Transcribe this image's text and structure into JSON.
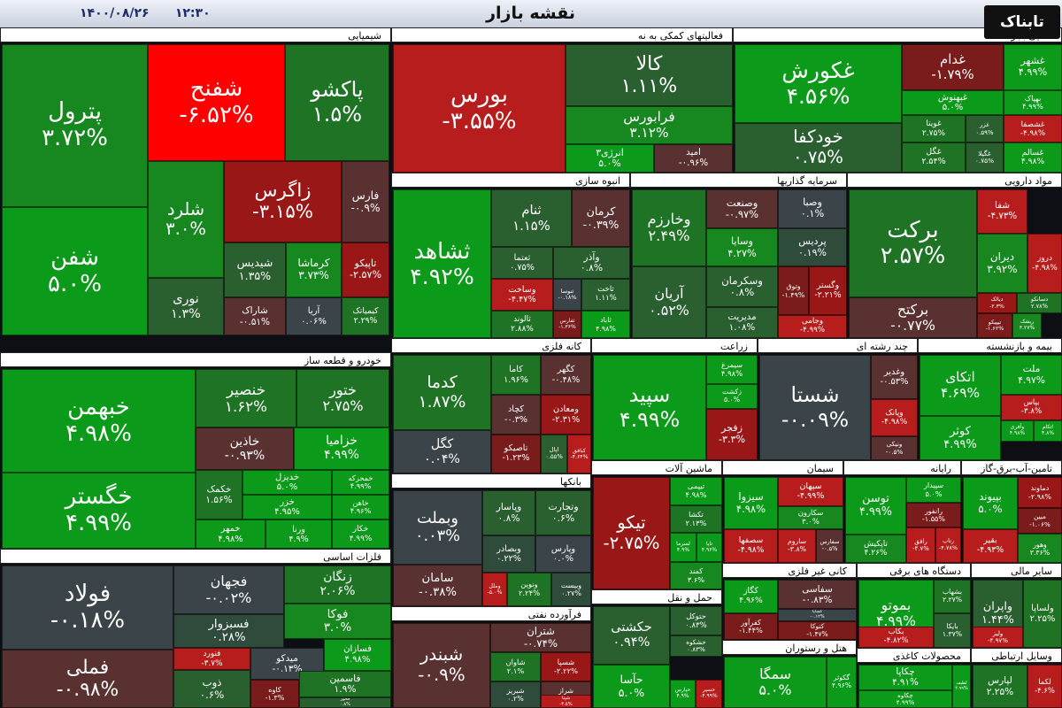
{
  "header": {
    "title": "نقشه بازار",
    "time": "۱۲:۳۰",
    "date": "۱۴۰۰/۰۸/۲۶",
    "logo": "تابناک"
  },
  "colors": {
    "g5": "#0c9a1a",
    "g4": "#17881f",
    "g3": "#1f7325",
    "g2": "#2a5f30",
    "g1": "#2f4b3b",
    "n": "#3b4448",
    "r1": "#5a3131",
    "r2": "#7a1c1c",
    "r3": "#9a1717",
    "r4": "#b81d1d",
    "r5": "#ff0000"
  },
  "chart_data": {
    "type": "treemap",
    "title": "نقشه بازار",
    "sectors": [
      {
        "name": "شیمیایی",
        "items": [
          {
            "n": "پترول",
            "p": "۳.۷۲%",
            "v": 3.72
          },
          {
            "n": "شفن",
            "p": "۵.۰%",
            "v": 5.0
          },
          {
            "n": "شفنح",
            "p": "-۶.۵۲%",
            "v": -6.52
          },
          {
            "n": "پاکشو",
            "p": "۱.۵%",
            "v": 1.5
          },
          {
            "n": "شلرد",
            "p": "۳.۰%",
            "v": 3.0
          },
          {
            "n": "زاگرس",
            "p": "-۳.۱۵%",
            "v": -3.15
          },
          {
            "n": "فارس",
            "p": "-۰.۹%",
            "v": -0.9
          },
          {
            "n": "شیدیس",
            "p": "۱.۳۵%",
            "v": 1.35
          },
          {
            "n": "کرماشا",
            "p": "۳.۷۳%",
            "v": 3.73
          },
          {
            "n": "تاپیکو",
            "p": "-۲.۵۷%",
            "v": -2.57
          },
          {
            "n": "نوری",
            "p": "۱.۳%",
            "v": 1.3
          },
          {
            "n": "شاراک",
            "p": "-۰.۵۱%",
            "v": -0.51
          },
          {
            "n": "آریا",
            "p": "۰.۰۶%",
            "v": 0.06
          },
          {
            "n": "کیمیاتک",
            "p": "۲.۲۹%",
            "v": 2.29
          }
        ]
      },
      {
        "name": "فعالیتهای کمکی به نه",
        "items": [
          {
            "n": "بورس",
            "p": "-۳.۵۵%",
            "v": -3.55
          },
          {
            "n": "کالا",
            "p": "۱.۱۱%",
            "v": 1.11
          },
          {
            "n": "فرابورس",
            "p": "۳.۱۲%",
            "v": 3.12
          },
          {
            "n": "انرژی۳",
            "p": "۵.۰%",
            "v": 5.0
          },
          {
            "n": "امید",
            "p": "-۰.۹۶%",
            "v": -0.96
          }
        ]
      },
      {
        "name": "غذایی بجز قند",
        "items": [
          {
            "n": "غکورش",
            "p": "۴.۵۶%",
            "v": 4.56
          },
          {
            "n": "خودکفا",
            "p": "۰.۷۵%",
            "v": 0.75
          },
          {
            "n": "غدام",
            "p": "-۱.۷۹%",
            "v": -1.79
          },
          {
            "n": "غشهر",
            "p": "۴.۹۹%",
            "v": 4.99
          },
          {
            "n": "غبهنوش",
            "p": "۵.۰%",
            "v": 5.0
          },
          {
            "n": "بهپاک",
            "p": "۴.۹۹%",
            "v": 4.99
          },
          {
            "n": "غویتا",
            "p": "۲.۷۵%",
            "v": 2.75
          },
          {
            "n": "غزر",
            "p": "۰.۵۹%",
            "v": 0.59
          },
          {
            "n": "غشصفا",
            "p": "-۴.۹۸%",
            "v": -4.98
          },
          {
            "n": "غگل",
            "p": "۲.۵۴%",
            "v": 2.54
          },
          {
            "n": "غگیلا",
            "p": "۰.۷۵%",
            "v": 0.75
          },
          {
            "n": "غسالم",
            "p": "۴.۹۸%",
            "v": 4.98
          }
        ]
      },
      {
        "name": "انبوه سازی",
        "items": [
          {
            "n": "ثشاهد",
            "p": "۴.۹۲%",
            "v": 4.92
          },
          {
            "n": "ثنام",
            "p": "۱.۱۵%",
            "v": 1.15
          },
          {
            "n": "کرمان",
            "p": "-۰.۳۹%",
            "v": -0.39
          },
          {
            "n": "ثعتما",
            "p": "۰.۷۵%",
            "v": 0.75
          },
          {
            "n": "وآذر",
            "p": "۰.۸%",
            "v": 0.8
          },
          {
            "n": "وساخت",
            "p": "-۴.۴۷%",
            "v": -4.47
          },
          {
            "n": "ثنوسا",
            "p": "-۰.۱۸%",
            "v": -0.18
          },
          {
            "n": "ثاخت",
            "p": "۱.۱۱%",
            "v": 1.11
          },
          {
            "n": "ثالوند",
            "p": "۲.۸۸%",
            "v": 2.88
          },
          {
            "n": "ثفارس",
            "p": "-۱.۳۶%",
            "v": -1.36
          },
          {
            "n": "ثاباد",
            "p": "۴.۹۸%",
            "v": 4.98
          }
        ]
      },
      {
        "name": "سرمایه گذاریها",
        "items": [
          {
            "n": "وخارزم",
            "p": "۲.۴۹%",
            "v": 2.49
          },
          {
            "n": "وصنعت",
            "p": "-۰.۹۷%",
            "v": -0.97
          },
          {
            "n": "وصبا",
            "p": "۰.۱%",
            "v": 0.1
          },
          {
            "n": "وسایا",
            "p": "۴.۲۷%",
            "v": 4.27
          },
          {
            "n": "پردیس",
            "p": "۰.۱۹%",
            "v": 0.19
          },
          {
            "n": "آریان",
            "p": "۰.۵۲%",
            "v": 0.52
          },
          {
            "n": "وسکرمان",
            "p": "۰.۸%",
            "v": 0.8
          },
          {
            "n": "وتوق",
            "p": "-۱.۴۹%",
            "v": -1.49
          },
          {
            "n": "وگستر",
            "p": "-۲.۲۱%",
            "v": -2.21
          },
          {
            "n": "مدیریت",
            "p": "۱.۰۸%",
            "v": 1.08
          },
          {
            "n": "وجامی",
            "p": "-۴.۹۹%",
            "v": -4.99
          }
        ]
      },
      {
        "name": "مواد دارویی",
        "items": [
          {
            "n": "برکت",
            "p": "۲.۵۷%",
            "v": 2.57
          },
          {
            "n": "شفا",
            "p": "-۴.۷۳%",
            "v": -4.73
          },
          {
            "n": "دیران",
            "p": "۳.۹۲%",
            "v": 3.92
          },
          {
            "n": "دروز",
            "p": "-۴.۹۸%",
            "v": -4.98
          },
          {
            "n": "برکتح",
            "p": "-۰.۷۷%",
            "v": -0.77
          },
          {
            "n": "دیالک",
            "p": "-۲.۳%",
            "v": -2.3
          },
          {
            "n": "دسانکو",
            "p": "۲.۷۸%",
            "v": 2.78
          },
          {
            "n": "تیپیکو",
            "p": "-۱.۶۲%",
            "v": -1.62
          },
          {
            "n": "ریشک",
            "p": "۳.۲۷%",
            "v": 3.27
          }
        ]
      },
      {
        "name": "خودرو و قطعه ساز",
        "items": [
          {
            "n": "خبهمن",
            "p": "۴.۹۸%",
            "v": 4.98
          },
          {
            "n": "خگستر",
            "p": "۴.۹۹%",
            "v": 4.99
          },
          {
            "n": "خنصیر",
            "p": "۱.۶۲%",
            "v": 1.62
          },
          {
            "n": "ختور",
            "p": "۲.۷۵%",
            "v": 2.75
          },
          {
            "n": "خاذین",
            "p": "-۰.۹۳%",
            "v": -0.93
          },
          {
            "n": "خزامیا",
            "p": "۴.۹۹%",
            "v": 4.99
          },
          {
            "n": "خکمک",
            "p": "۱.۵۶%",
            "v": 1.56
          },
          {
            "n": "خدیزل",
            "p": "۵.۰%",
            "v": 5.0
          },
          {
            "n": "خمحرکه",
            "p": "۴.۹۹%",
            "v": 4.99
          },
          {
            "n": "خزر",
            "p": "۴.۹۵%",
            "v": 4.95
          },
          {
            "n": "خاهن",
            "p": "۴.۹۶%",
            "v": 4.96
          },
          {
            "n": "خمهر",
            "p": "۴.۹۸%",
            "v": 4.98
          },
          {
            "n": "ورنا",
            "p": "۴.۹%",
            "v": 4.9
          },
          {
            "n": "خکار",
            "p": "۴.۹۹%",
            "v": 4.99
          }
        ]
      },
      {
        "name": "کانه فلزی",
        "items": [
          {
            "n": "کدما",
            "p": "۱.۸۷%",
            "v": 1.87
          },
          {
            "n": "کاما",
            "p": "۱.۹۶%",
            "v": 1.96
          },
          {
            "n": "کگهر",
            "p": "-۰.۴۸%",
            "v": -0.48
          },
          {
            "n": "کگل",
            "p": "۰.۰۴%",
            "v": 0.04
          },
          {
            "n": "کچاد",
            "p": "-۰.۳%",
            "v": -0.3
          },
          {
            "n": "ومعادن",
            "p": "-۲.۳۱%",
            "v": -2.31
          },
          {
            "n": "تاصیکو",
            "p": "-۱.۲۳%",
            "v": -1.23
          },
          {
            "n": "اپال",
            "p": "۰.۵۵%",
            "v": 0.55
          },
          {
            "n": "کبافق",
            "p": "-۴.۶۴%",
            "v": -4.64
          }
        ]
      },
      {
        "name": "زراعت",
        "items": [
          {
            "n": "سپید",
            "p": "۴.۹۹%",
            "v": 4.99
          },
          {
            "n": "سیمرغ",
            "p": "۴.۹۸%",
            "v": 4.98
          },
          {
            "n": "زکشت",
            "p": "۵.۰%",
            "v": 5.0
          },
          {
            "n": "زفجر",
            "p": "-۳.۳%",
            "v": -3.3
          }
        ]
      },
      {
        "name": "چند رشته ای",
        "items": [
          {
            "n": "شستا",
            "p": "-۰.۰۹%",
            "v": -0.09
          },
          {
            "n": "وغدیر",
            "p": "-۰.۵۳%",
            "v": -0.53
          },
          {
            "n": "وپانک",
            "p": "-۴.۹۸%",
            "v": -4.98
          },
          {
            "n": "ونیکی",
            "p": "-۰.۵%",
            "v": -0.5
          }
        ]
      },
      {
        "name": "بیمه و بازنشسته",
        "items": [
          {
            "n": "اتکای",
            "p": "۴.۶۹%",
            "v": 4.69
          },
          {
            "n": "ملت",
            "p": "۴.۹۷%",
            "v": 4.97
          },
          {
            "n": "بپاس",
            "p": "-۳.۸%",
            "v": -3.8
          },
          {
            "n": "کوثر",
            "p": "۴.۹۹%",
            "v": 4.99
          },
          {
            "n": "وآفری",
            "p": "۴.۹۸%",
            "v": 4.98
          },
          {
            "n": "اتکام",
            "p": "۴.۸%",
            "v": 4.8
          }
        ]
      },
      {
        "name": "فلزات اساسی",
        "items": [
          {
            "n": "فولاد",
            "p": "-۰.۱۸%",
            "v": -0.18
          },
          {
            "n": "فملی",
            "p": "-۰.۹۸%",
            "v": -0.98
          },
          {
            "n": "فجهان",
            "p": "-۰.۰۲%",
            "v": -0.02
          },
          {
            "n": "ذوب",
            "p": "۰.۶%",
            "v": 0.6
          },
          {
            "n": "فسبزوار",
            "p": "۰.۲۸%",
            "v": 0.28
          },
          {
            "n": "زنگان",
            "p": "۲.۰۶%",
            "v": 2.06
          },
          {
            "n": "فوکا",
            "p": "۳.۰%",
            "v": 3.0
          },
          {
            "n": "فنورد",
            "p": "-۳.۷%",
            "v": -3.7
          },
          {
            "n": "میدکو",
            "p": "-۰.۱۳%",
            "v": -0.13
          },
          {
            "n": "فسازان",
            "p": "۴.۹۸%",
            "v": 4.98
          },
          {
            "n": "کاوه",
            "p": "-۱.۳%",
            "v": -1.3
          },
          {
            "n": "فاسمین",
            "p": "۱.۹%",
            "v": 1.9
          },
          {
            "n": "فخوز",
            "p": "۰.۸%",
            "v": 0.8
          }
        ]
      },
      {
        "name": "بانکها",
        "items": [
          {
            "n": "وبملت",
            "p": "۰.۰۳%",
            "v": 0.03
          },
          {
            "n": "وپاسار",
            "p": "۰.۸%",
            "v": 0.8
          },
          {
            "n": "وتجارت",
            "p": "۰.۶%",
            "v": 0.6
          },
          {
            "n": "وبصادر",
            "p": "۰.۲۲%",
            "v": 0.22
          },
          {
            "n": "وپارس",
            "p": "۰.۰%",
            "v": 0.0
          },
          {
            "n": "سامان",
            "p": "-۰.۳۸%",
            "v": -0.38
          },
          {
            "n": "وملل",
            "p": "-۵.۰%",
            "v": -5.0
          },
          {
            "n": "ونوین",
            "p": "۲.۲۴%",
            "v": 2.24
          },
          {
            "n": "وبیست",
            "p": "۰.۲۷%",
            "v": 0.27
          }
        ]
      },
      {
        "name": "ماشین آلات",
        "items": [
          {
            "n": "تیکو",
            "p": "-۲.۷۵%",
            "v": -2.75
          },
          {
            "n": "تیپمی",
            "p": "۴.۹۸%",
            "v": 4.98
          },
          {
            "n": "تکشا",
            "p": "۲.۱۳%",
            "v": 2.13
          },
          {
            "n": "لسرما",
            "p": "۴.۹%",
            "v": 4.9
          },
          {
            "n": "تاپا",
            "p": "۴.۹۶%",
            "v": 4.96
          },
          {
            "n": "کمند",
            "p": "۳.۶%",
            "v": 3.6
          }
        ]
      },
      {
        "name": "سیمان",
        "items": [
          {
            "n": "سیزوا",
            "p": "۴.۹۸%",
            "v": 4.98
          },
          {
            "n": "سپهان",
            "p": "-۴.۹۹%",
            "v": -4.99
          },
          {
            "n": "سکارون",
            "p": "۳.۰%",
            "v": 3.0
          },
          {
            "n": "سصفها",
            "p": "-۴.۹۸%",
            "v": -4.98
          },
          {
            "n": "ساروم",
            "p": "-۳.۸%",
            "v": -3.8
          },
          {
            "n": "سفارس",
            "p": "-۰.۵%",
            "v": -0.5
          }
        ]
      },
      {
        "name": "رایانه",
        "items": [
          {
            "n": "توسن",
            "p": "۴.۹۹%",
            "v": 4.99
          },
          {
            "n": "سپیدار",
            "p": "۵.۰%",
            "v": 5.0
          },
          {
            "n": "رانفور",
            "p": "-۱.۵۵%",
            "v": -1.55
          },
          {
            "n": "تاپکیش",
            "p": "۴.۲۶%",
            "v": 4.26
          },
          {
            "n": "رافق",
            "p": "-۴.۷%",
            "v": -4.7
          },
          {
            "n": "رتاپ",
            "p": "-۴.۷۸%",
            "v": -4.78
          }
        ]
      },
      {
        "name": "تامین-آب-برق-گاز",
        "items": [
          {
            "n": "بپیوند",
            "p": "۵.۰%",
            "v": 5.0
          },
          {
            "n": "دماوند",
            "p": "-۲.۹۸%",
            "v": -2.98
          },
          {
            "n": "مبین",
            "p": "-۱.۰۶%",
            "v": -1.06
          },
          {
            "n": "بقیر",
            "p": "-۴.۹۳%",
            "v": -4.93
          },
          {
            "n": "وهور",
            "p": "۳.۳۶%",
            "v": 3.36
          }
        ]
      },
      {
        "name": "فرآورده نفتی",
        "items": [
          {
            "n": "شبندر",
            "p": "-۰.۹%",
            "v": -0.9
          },
          {
            "n": "شتران",
            "p": "-۰.۷۴%",
            "v": -0.74
          },
          {
            "n": "شاوان",
            "p": "۲.۱%",
            "v": 2.1
          },
          {
            "n": "شسپا",
            "p": "-۲.۲۲%",
            "v": -2.22
          },
          {
            "n": "شراز",
            "p": "-۰.۹%",
            "v": -0.9
          },
          {
            "n": "شبریز",
            "p": "۰.۲%",
            "v": 0.2
          },
          {
            "n": "شپنا",
            "p": "-۳.۵%",
            "v": -3.5
          }
        ]
      },
      {
        "name": "حمل و نقل",
        "items": [
          {
            "n": "حکشتی",
            "p": "۰.۹۴%",
            "v": 0.94
          },
          {
            "n": "حتوکل",
            "p": "۰.۸۳%",
            "v": 0.83
          },
          {
            "n": "حشکوه",
            "p": "۰.۸۳%",
            "v": 0.83
          },
          {
            "n": "حآسا",
            "p": "۵.۰%",
            "v": 5.0
          },
          {
            "n": "حپارس",
            "p": "۴.۹%",
            "v": 4.9
          },
          {
            "n": "حسیر",
            "p": "-۴.۹۹%",
            "v": -4.99
          }
        ]
      },
      {
        "name": "کانی غیر فلزی",
        "items": [
          {
            "n": "کگاز",
            "p": "۴.۹۶%",
            "v": 4.96
          },
          {
            "n": "سفاسی",
            "p": "-۰.۸۳%",
            "v": -0.83
          },
          {
            "n": "کساپا",
            "p": "-۰.۱۲%",
            "v": -0.12
          },
          {
            "n": "کفرآور",
            "p": "-۱.۴۴%",
            "v": -1.44
          },
          {
            "n": "کتوکا",
            "p": "-۱.۴۷%",
            "v": -1.47
          }
        ]
      },
      {
        "name": "دستگاه های برقی",
        "items": [
          {
            "n": "بموتو",
            "p": "۴.۹۹%",
            "v": 4.99
          },
          {
            "n": "بشهاب",
            "p": "۲.۲۷%",
            "v": 2.27
          },
          {
            "n": "بکاب",
            "p": "-۴.۸۲%",
            "v": -4.82
          },
          {
            "n": "بایکا",
            "p": "۱.۳۷%",
            "v": 1.37
          }
        ]
      },
      {
        "name": "سایر مالی",
        "items": [
          {
            "n": "واپران",
            "p": "۱.۴۴%",
            "v": 1.44
          },
          {
            "n": "ولساپا",
            "p": "۲.۲۵%",
            "v": 2.25
          },
          {
            "n": "ولیز",
            "p": "-۴.۹۷%",
            "v": -4.97
          }
        ]
      },
      {
        "name": "هتل و رستوران",
        "items": [
          {
            "n": "سمگا",
            "p": "۵.۰%",
            "v": 5.0
          },
          {
            "n": "گکوثر",
            "p": "۴.۹۶%",
            "v": 4.96
          }
        ]
      },
      {
        "name": "محصولات کاغذی",
        "items": [
          {
            "n": "چکاپا",
            "p": "۴.۹۱%",
            "v": 4.91
          },
          {
            "n": "چکاوه",
            "p": "۴.۹۹%",
            "v": 4.99
          },
          {
            "n": "لطیف",
            "p": "۴.۹۹%",
            "v": 4.99
          }
        ]
      },
      {
        "name": "وسایل ارتباطی",
        "items": [
          {
            "n": "لپارس",
            "p": "۲.۲۵%",
            "v": 2.25
          },
          {
            "n": "لکما",
            "p": "-۴.۶%",
            "v": -4.6
          }
        ]
      }
    ]
  }
}
